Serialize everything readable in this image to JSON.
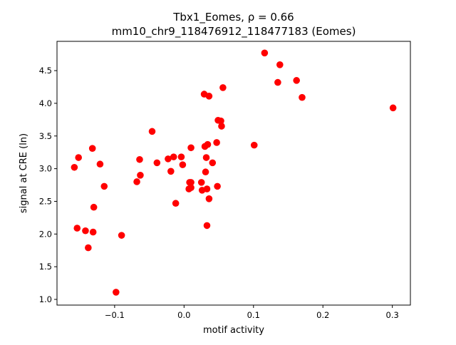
{
  "chart_data": {
    "type": "scatter",
    "title": "Tbx1_Eomes, ρ = 0.66",
    "subtitle": "mm10_chr9_118476912_118477183 (Eomes)",
    "xlabel": "motif activity",
    "ylabel": "signal at CRE (ln)",
    "xlim": [
      -0.183,
      0.326
    ],
    "ylim": [
      0.913,
      4.948
    ],
    "xticks": [
      -0.1,
      0.0,
      0.1,
      0.2,
      0.3
    ],
    "xtick_labels": [
      "−0.1",
      "0.0",
      "0.1",
      "0.2",
      "0.3"
    ],
    "yticks": [
      1.0,
      1.5,
      2.0,
      2.5,
      3.0,
      3.5,
      4.0,
      4.5
    ],
    "ytick_labels": [
      "1.0",
      "1.5",
      "2.0",
      "2.5",
      "3.0",
      "3.5",
      "4.0",
      "4.5"
    ],
    "grid": false,
    "marker_color": "#ff0000",
    "points": [
      [
        -0.158,
        3.02
      ],
      [
        -0.152,
        3.17
      ],
      [
        -0.154,
        2.09
      ],
      [
        -0.132,
        3.31
      ],
      [
        -0.121,
        3.07
      ],
      [
        -0.142,
        2.05
      ],
      [
        -0.13,
        2.41
      ],
      [
        -0.115,
        2.73
      ],
      [
        -0.138,
        1.79
      ],
      [
        -0.131,
        2.03
      ],
      [
        -0.09,
        1.98
      ],
      [
        -0.098,
        1.11
      ],
      [
        -0.046,
        3.57
      ],
      [
        -0.068,
        2.8
      ],
      [
        -0.064,
        3.14
      ],
      [
        -0.063,
        2.9
      ],
      [
        -0.039,
        3.09
      ],
      [
        -0.023,
        3.15
      ],
      [
        -0.015,
        3.18
      ],
      [
        -0.019,
        2.96
      ],
      [
        -0.004,
        3.18
      ],
      [
        -0.002,
        3.06
      ],
      [
        -0.012,
        2.47
      ],
      [
        0.01,
        3.32
      ],
      [
        0.008,
        2.79
      ],
      [
        0.01,
        2.71
      ],
      [
        0.007,
        2.69
      ],
      [
        0.01,
        2.79
      ],
      [
        0.029,
        4.14
      ],
      [
        0.036,
        4.11
      ],
      [
        0.03,
        3.34
      ],
      [
        0.034,
        3.37
      ],
      [
        0.032,
        3.17
      ],
      [
        0.031,
        2.95
      ],
      [
        0.025,
        2.79
      ],
      [
        0.026,
        2.67
      ],
      [
        0.033,
        2.69
      ],
      [
        0.036,
        2.54
      ],
      [
        0.033,
        2.13
      ],
      [
        0.041,
        3.09
      ],
      [
        0.047,
        3.4
      ],
      [
        0.049,
        3.74
      ],
      [
        0.056,
        4.24
      ],
      [
        0.048,
        2.73
      ],
      [
        0.053,
        3.73
      ],
      [
        0.054,
        3.65
      ],
      [
        0.101,
        3.36
      ],
      [
        0.116,
        4.77
      ],
      [
        0.138,
        4.59
      ],
      [
        0.135,
        4.32
      ],
      [
        0.162,
        4.35
      ],
      [
        0.17,
        4.09
      ],
      [
        0.301,
        3.93
      ]
    ]
  }
}
